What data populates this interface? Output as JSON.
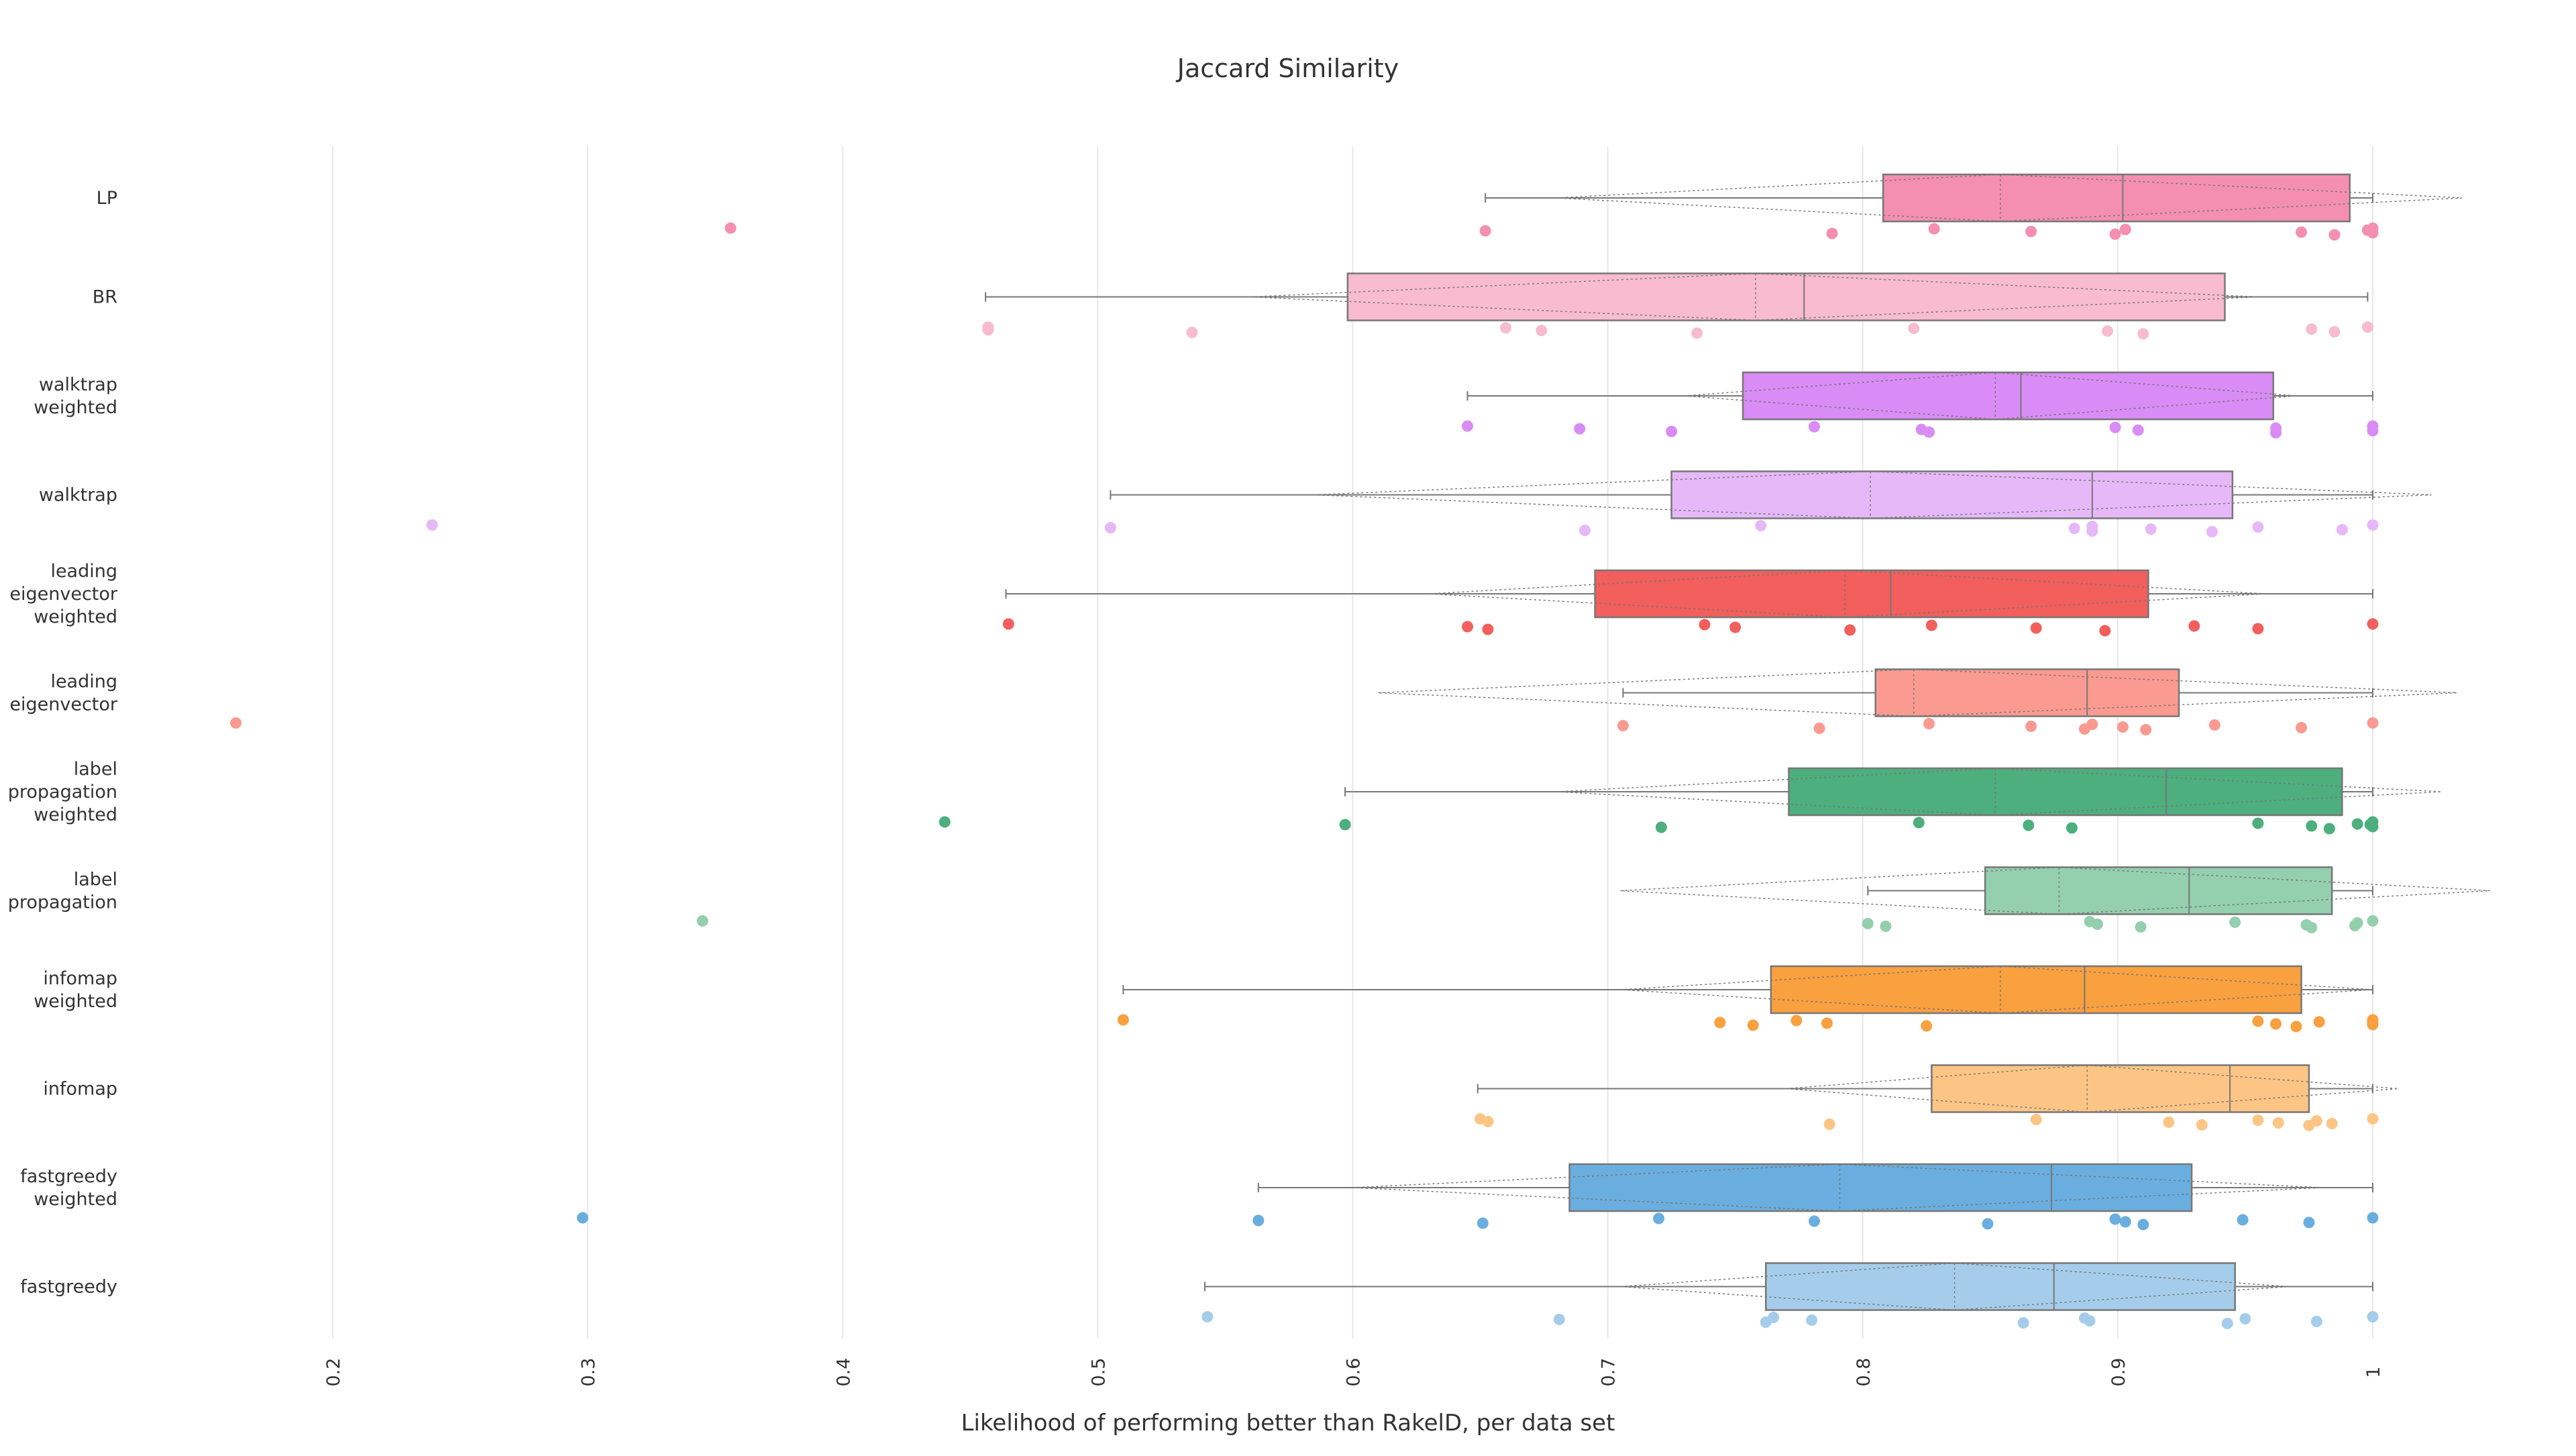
{
  "chart_data": {
    "type": "box",
    "orientation": "horizontal",
    "title": "Jaccard Similarity",
    "xlabel": "Likelihood of performing better than RakelD, per data set",
    "ylabel": "",
    "xlim": [
      0.12,
      1.08
    ],
    "xticks": [
      0.2,
      0.3,
      0.4,
      0.5,
      0.6,
      0.7,
      0.8,
      0.9,
      1
    ],
    "xtick_labels": [
      "0.2",
      "0.3",
      "0.4",
      "0.5",
      "0.6",
      "0.7",
      "0.8",
      "0.9",
      "1"
    ],
    "grid": "vertical",
    "legend": "none",
    "series": [
      {
        "label_lines": [
          "LP"
        ],
        "color": "#f48fb1",
        "whisker_low": 0.652,
        "q1": 0.808,
        "median": 0.902,
        "q3": 0.991,
        "whisker_high": 1.0,
        "mean": 0.854,
        "sd_low": 0.68,
        "sd_high": 1.035,
        "points": [
          0.356,
          0.652,
          0.788,
          0.828,
          0.866,
          0.899,
          0.903,
          0.972,
          0.985,
          0.998,
          1.0,
          1.0,
          0.999
        ]
      },
      {
        "label_lines": [
          "BR"
        ],
        "color": "#f8bbd0",
        "whisker_low": 0.456,
        "q1": 0.598,
        "median": 0.777,
        "q3": 0.942,
        "whisker_high": 0.998,
        "mean": 0.758,
        "sd_low": 0.56,
        "sd_high": 0.955,
        "points": [
          0.457,
          0.457,
          0.537,
          0.66,
          0.674,
          0.735,
          0.82,
          0.896,
          0.91,
          0.976,
          0.985,
          0.998
        ]
      },
      {
        "label_lines": [
          "walktrap",
          "weighted"
        ],
        "color": "#d98cf5",
        "whisker_low": 0.645,
        "q1": 0.753,
        "median": 0.862,
        "q3": 0.961,
        "whisker_high": 1.0,
        "mean": 0.852,
        "sd_low": 0.73,
        "sd_high": 0.97,
        "points": [
          0.645,
          0.689,
          0.725,
          0.781,
          0.823,
          0.826,
          0.899,
          0.908,
          0.962,
          0.962,
          1.0,
          1.0
        ]
      },
      {
        "label_lines": [
          "walktrap"
        ],
        "color": "#e6b8f8",
        "whisker_low": 0.505,
        "q1": 0.725,
        "median": 0.89,
        "q3": 0.945,
        "whisker_high": 1.0,
        "mean": 0.803,
        "sd_low": 0.585,
        "sd_high": 1.023,
        "points": [
          0.239,
          0.505,
          0.691,
          0.76,
          0.883,
          0.89,
          0.89,
          0.913,
          0.937,
          0.955,
          0.988,
          1.0
        ]
      },
      {
        "label_lines": [
          "leading",
          "eigenvector",
          "weighted"
        ],
        "color": "#f25f5c",
        "whisker_low": 0.464,
        "q1": 0.695,
        "median": 0.811,
        "q3": 0.912,
        "whisker_high": 1.0,
        "mean": 0.793,
        "sd_low": 0.63,
        "sd_high": 0.958,
        "points": [
          0.465,
          0.645,
          0.653,
          0.738,
          0.75,
          0.795,
          0.827,
          0.868,
          0.895,
          0.93,
          0.955,
          1.0
        ]
      },
      {
        "label_lines": [
          "leading",
          "eigenvector"
        ],
        "color": "#fb9a90",
        "whisker_low": 0.706,
        "q1": 0.805,
        "median": 0.888,
        "q3": 0.924,
        "whisker_high": 1.0,
        "mean": 0.82,
        "sd_low": 0.61,
        "sd_high": 1.033,
        "points": [
          0.162,
          0.706,
          0.783,
          0.826,
          0.866,
          0.887,
          0.89,
          0.902,
          0.911,
          0.938,
          0.972,
          1.0
        ]
      },
      {
        "label_lines": [
          "label",
          "propagation",
          "weighted"
        ],
        "color": "#4caf7d",
        "whisker_low": 0.597,
        "q1": 0.771,
        "median": 0.919,
        "q3": 0.988,
        "whisker_high": 1.0,
        "mean": 0.852,
        "sd_low": 0.68,
        "sd_high": 1.027,
        "points": [
          0.44,
          0.597,
          0.721,
          0.822,
          0.865,
          0.882,
          0.955,
          0.976,
          0.983,
          0.994,
          1.0,
          1.0,
          0.999
        ]
      },
      {
        "label_lines": [
          "label",
          "propagation"
        ],
        "color": "#94cfae",
        "whisker_low": 0.802,
        "q1": 0.848,
        "median": 0.928,
        "q3": 0.984,
        "whisker_high": 1.0,
        "mean": 0.877,
        "sd_low": 0.705,
        "sd_high": 1.046,
        "points": [
          0.345,
          0.802,
          0.809,
          0.889,
          0.892,
          0.909,
          0.946,
          0.974,
          0.976,
          0.994,
          0.993,
          1.0
        ]
      },
      {
        "label_lines": [
          "infomap",
          "weighted"
        ],
        "color": "#f9a03f",
        "whisker_low": 0.51,
        "q1": 0.764,
        "median": 0.887,
        "q3": 0.972,
        "whisker_high": 1.0,
        "mean": 0.854,
        "sd_low": 0.705,
        "sd_high": 1.0,
        "points": [
          0.51,
          0.744,
          0.757,
          0.774,
          0.786,
          0.825,
          0.955,
          0.962,
          0.97,
          0.979,
          1.0,
          1.0,
          1.0
        ]
      },
      {
        "label_lines": [
          "infomap"
        ],
        "color": "#fdc585",
        "whisker_low": 0.649,
        "q1": 0.827,
        "median": 0.944,
        "q3": 0.975,
        "whisker_high": 1.0,
        "mean": 0.888,
        "sd_low": 0.77,
        "sd_high": 1.01,
        "points": [
          0.65,
          0.653,
          0.787,
          0.868,
          0.92,
          0.933,
          0.955,
          0.963,
          0.975,
          0.978,
          0.984,
          1.0
        ]
      },
      {
        "label_lines": [
          "fastgreedy",
          "weighted"
        ],
        "color": "#6aaee0",
        "whisker_low": 0.563,
        "q1": 0.685,
        "median": 0.874,
        "q3": 0.929,
        "whisker_high": 1.0,
        "mean": 0.791,
        "sd_low": 0.6,
        "sd_high": 0.98,
        "points": [
          0.298,
          0.563,
          0.651,
          0.72,
          0.781,
          0.849,
          0.899,
          0.903,
          0.91,
          0.949,
          0.975,
          1.0
        ]
      },
      {
        "label_lines": [
          "fastgreedy"
        ],
        "color": "#a5cdeb",
        "whisker_low": 0.542,
        "q1": 0.762,
        "median": 0.875,
        "q3": 0.946,
        "whisker_high": 1.0,
        "mean": 0.836,
        "sd_low": 0.705,
        "sd_high": 0.967,
        "points": [
          0.543,
          0.681,
          0.762,
          0.765,
          0.78,
          0.863,
          0.887,
          0.889,
          0.943,
          0.95,
          0.978,
          1.0
        ]
      }
    ]
  }
}
